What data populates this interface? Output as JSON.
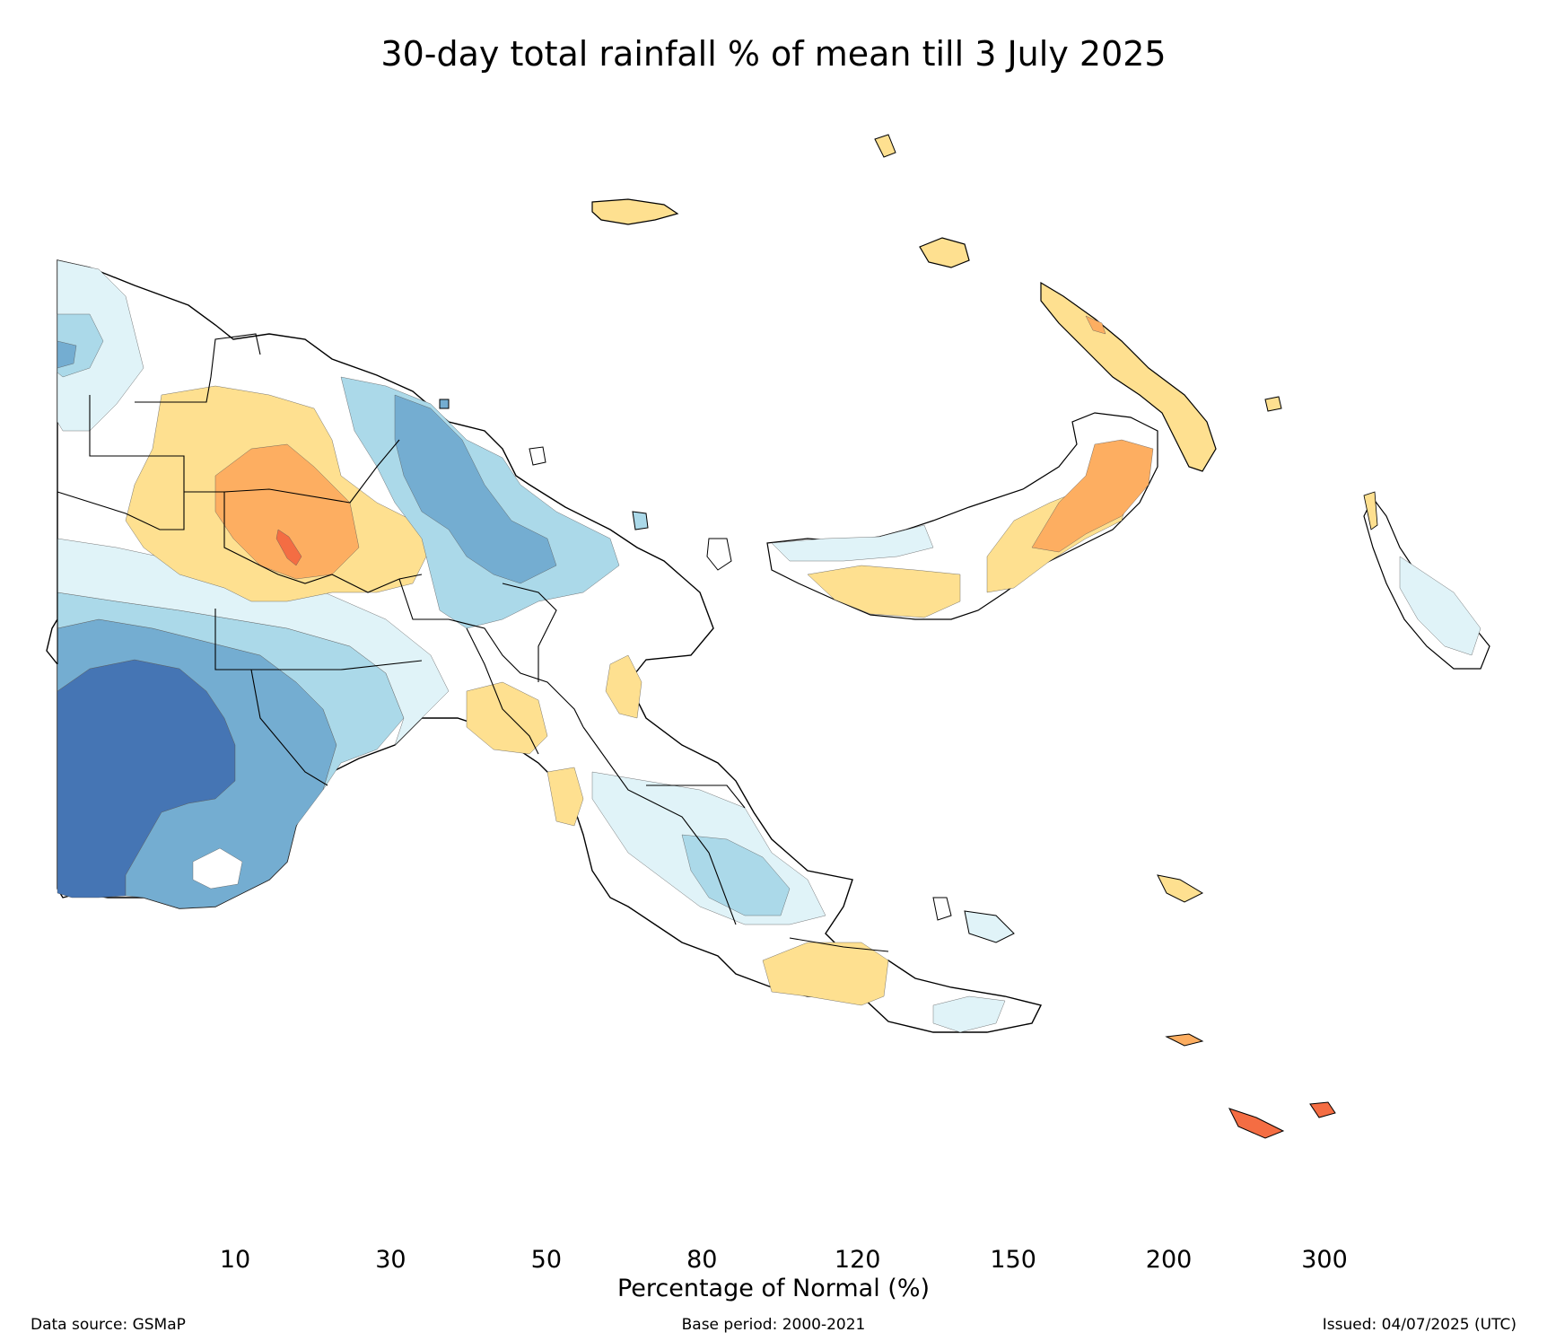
{
  "title": "30-day total rainfall % of mean till 3 July 2025",
  "legend": {
    "label": "Percentage of Normal (%)",
    "ticks": [
      "10",
      "30",
      "50",
      "80",
      "120",
      "150",
      "200",
      "300"
    ],
    "bins": [
      {
        "range": "<10",
        "color": "#d73027"
      },
      {
        "range": "10-30",
        "color": "#f46d43"
      },
      {
        "range": "30-50",
        "color": "#fdae61"
      },
      {
        "range": "50-80",
        "color": "#fee090"
      },
      {
        "range": "80-120",
        "color": "#ffffff"
      },
      {
        "range": "120-150",
        "color": "#e0f3f8"
      },
      {
        "range": "150-200",
        "color": "#abd9e9"
      },
      {
        "range": "200-300",
        "color": "#74add1"
      },
      {
        "range": ">300",
        "color": "#4575b4"
      }
    ]
  },
  "footer": {
    "source": "Data source: GSMaP",
    "base_period": "Base period: 2000-2021",
    "issued": "Issued: 04/07/2025 (UTC)"
  }
}
